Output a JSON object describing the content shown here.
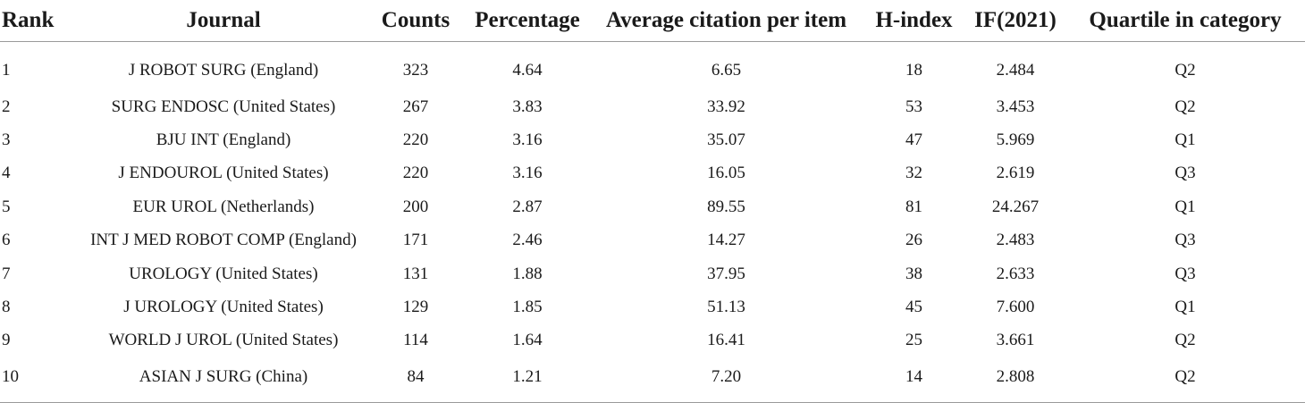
{
  "table": {
    "headers": [
      "Rank",
      "Journal",
      "Counts",
      "Percentage",
      "Average citation per item",
      "H-index",
      "IF(2021)",
      "Quartile in category"
    ],
    "rows": [
      [
        "1",
        "J ROBOT SURG (England)",
        "323",
        "4.64",
        "6.65",
        "18",
        "2.484",
        "Q2"
      ],
      [
        "2",
        "SURG ENDOSC (United States)",
        "267",
        "3.83",
        "33.92",
        "53",
        "3.453",
        "Q2"
      ],
      [
        "3",
        "BJU INT (England)",
        "220",
        "3.16",
        "35.07",
        "47",
        "5.969",
        "Q1"
      ],
      [
        "4",
        "J ENDOUROL (United States)",
        "220",
        "3.16",
        "16.05",
        "32",
        "2.619",
        "Q3"
      ],
      [
        "5",
        "EUR UROL (Netherlands)",
        "200",
        "2.87",
        "89.55",
        "81",
        "24.267",
        "Q1"
      ],
      [
        "6",
        "INT J MED ROBOT COMP (England)",
        "171",
        "2.46",
        "14.27",
        "26",
        "2.483",
        "Q3"
      ],
      [
        "7",
        "UROLOGY (United States)",
        "131",
        "1.88",
        "37.95",
        "38",
        "2.633",
        "Q3"
      ],
      [
        "8",
        "J UROLOGY (United States)",
        "129",
        "1.85",
        "51.13",
        "45",
        "7.600",
        "Q1"
      ],
      [
        "9",
        "WORLD J UROL (United States)",
        "114",
        "1.64",
        "16.41",
        "25",
        "3.661",
        "Q2"
      ],
      [
        "10",
        "ASIAN J SURG (China)",
        "84",
        "1.21",
        "7.20",
        "14",
        "2.808",
        "Q2"
      ]
    ]
  }
}
